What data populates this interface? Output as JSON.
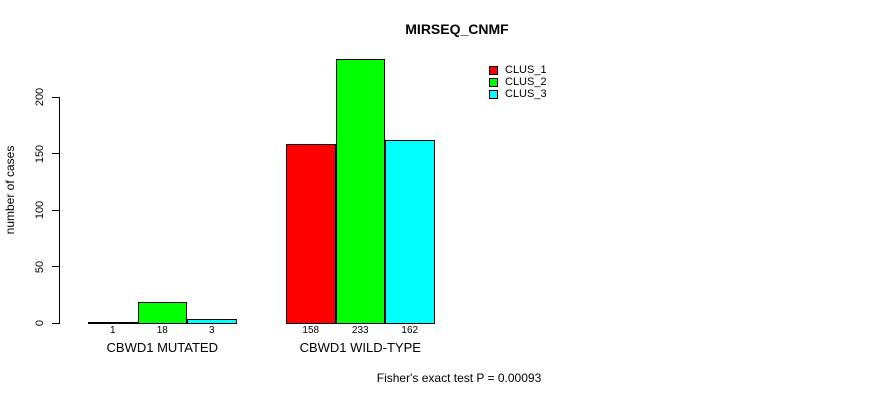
{
  "chart_data": {
    "type": "bar",
    "title": "MIRSEQ_CNMF",
    "ylabel": "number of cases",
    "xlabel": "",
    "categories": [
      "CBWD1 MUTATED",
      "CBWD1 WILD-TYPE"
    ],
    "series": [
      {
        "name": "CLUS_1",
        "color": "#ff0000",
        "values": [
          1,
          158
        ]
      },
      {
        "name": "CLUS_2",
        "color": "#00ff00",
        "values": [
          18,
          233
        ]
      },
      {
        "name": "CLUS_3",
        "color": "#00ffff",
        "values": [
          3,
          162
        ]
      }
    ],
    "yticks": [
      0,
      50,
      100,
      150,
      200
    ],
    "ylim": [
      0,
      240
    ],
    "grid": false,
    "legend_position": "top-right",
    "bar_value_labels_shown": true,
    "annotation": "Fisher's exact test P = 0.00093",
    "axis_color": "#000000",
    "background_color": "#ffffff"
  }
}
